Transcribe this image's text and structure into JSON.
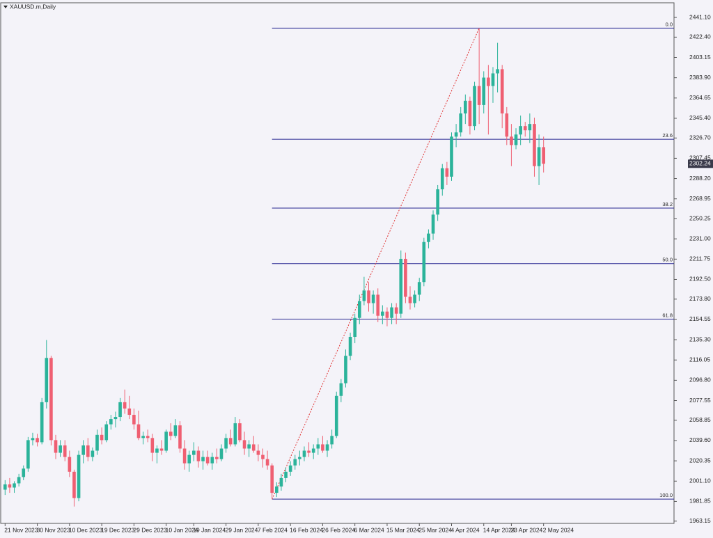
{
  "chart_data": {
    "type": "candlestick",
    "title": "XAUUSD.m,Daily",
    "up_color": "#2bb39a",
    "down_color": "#ef5f72",
    "fib_color": "#23238f",
    "trend_color": "#e03030",
    "ylim": [
      1961,
      2455
    ],
    "yticks": [
      {
        "value": 2441.1,
        "label": "2441.10"
      },
      {
        "value": 2422.4,
        "label": "2422.40"
      },
      2403.15,
      {
        "value": 2383.9,
        "label": "2383.90"
      },
      2364.65,
      {
        "value": 2345.4,
        "label": "2345.40"
      },
      {
        "value": 2326.7,
        "label": "2326.70"
      },
      2307.45,
      {
        "value": 2288.2,
        "label": "2288.20"
      },
      2268.95,
      2250.25,
      {
        "value": 2231,
        "label": "2231.00"
      },
      2211.75,
      {
        "value": 2192.5,
        "label": "2192.50"
      },
      {
        "value": 2173.8,
        "label": "2173.80"
      },
      2154.55,
      {
        "value": 2135.3,
        "label": "2135.30"
      },
      2116.05,
      {
        "value": 2096.8,
        "label": "2096.80"
      },
      2077.55,
      2058.85,
      {
        "value": 2039.6,
        "label": "2039.60"
      },
      2020.35,
      {
        "value": 2001.1,
        "label": "2001.10"
      },
      1981.85,
      1963.15
    ],
    "current_price": 2302.24,
    "fib_levels": [
      {
        "label": "0.0",
        "price": 2431
      },
      {
        "label": "23.6",
        "price": 2325.5
      },
      {
        "label": "38.2",
        "price": 2260.2
      },
      {
        "label": "50.0",
        "price": 2207.5
      },
      {
        "label": "61.8",
        "price": 2154.8
      },
      {
        "label": "100.0",
        "price": 1984
      }
    ],
    "categories": [
      "21 Nov 2023",
      null,
      null,
      null,
      null,
      null,
      null,
      "30 Nov 2023",
      null,
      null,
      null,
      null,
      null,
      null,
      "10 Dec 2023",
      null,
      null,
      null,
      null,
      null,
      null,
      "19 Dec 2023",
      null,
      null,
      null,
      null,
      null,
      null,
      "29 Dec 2023",
      null,
      null,
      null,
      null,
      null,
      null,
      "10 Jan 2024",
      null,
      null,
      null,
      null,
      null,
      "19 Jan 2024",
      null,
      null,
      null,
      null,
      null,
      null,
      "29 Jan 2024",
      null,
      null,
      null,
      null,
      null,
      null,
      "7 Feb 2024",
      null,
      null,
      null,
      null,
      null,
      null,
      "16 Feb 2024",
      null,
      null,
      null,
      null,
      null,
      null,
      "26 Feb 2024",
      null,
      null,
      null,
      null,
      null,
      null,
      "6 Mar 2024",
      null,
      null,
      null,
      null,
      null,
      null,
      "15 Mar 2024",
      null,
      null,
      null,
      null,
      null,
      null,
      "25 Mar 2024",
      null,
      null,
      null,
      null,
      null,
      null,
      "4 Apr 2024",
      null,
      null,
      null,
      null,
      null,
      null,
      "14 Apr 2024",
      null,
      null,
      null,
      null,
      null,
      "23 Apr 2024",
      null,
      null,
      null,
      null,
      null,
      null,
      "2 May 2024"
    ],
    "ohlc": [
      [
        1993,
        2002,
        1988,
        1998
      ],
      [
        1998,
        2004,
        1990,
        1995
      ],
      [
        1995,
        2001,
        1990,
        1999
      ],
      [
        1999,
        2008,
        1996,
        2005
      ],
      [
        2005,
        2016,
        2002,
        2013
      ],
      [
        2013,
        2043,
        2010,
        2040
      ],
      [
        2040,
        2047,
        2035,
        2042
      ],
      [
        2042,
        2046,
        2034,
        2038
      ],
      [
        2038,
        2080,
        2036,
        2076
      ],
      [
        2076,
        2135,
        2070,
        2118
      ],
      [
        2118,
        2120,
        2035,
        2040
      ],
      [
        2040,
        2045,
        2022,
        2028
      ],
      [
        2028,
        2040,
        2024,
        2035
      ],
      [
        2035,
        2040,
        2020,
        2024
      ],
      [
        2024,
        2030,
        2005,
        2010
      ],
      [
        2010,
        2012,
        1977,
        1985
      ],
      [
        1985,
        2030,
        1982,
        2026
      ],
      [
        2026,
        2040,
        2018,
        2035
      ],
      [
        2035,
        2042,
        2020,
        2024
      ],
      [
        2024,
        2033,
        2020,
        2030
      ],
      [
        2030,
        2050,
        2026,
        2045
      ],
      [
        2045,
        2052,
        2036,
        2040
      ],
      [
        2040,
        2058,
        2038,
        2055
      ],
      [
        2055,
        2064,
        2050,
        2060
      ],
      [
        2060,
        2067,
        2052,
        2062
      ],
      [
        2062,
        2080,
        2058,
        2076
      ],
      [
        2076,
        2088,
        2065,
        2070
      ],
      [
        2070,
        2082,
        2060,
        2064
      ],
      [
        2064,
        2070,
        2050,
        2055
      ],
      [
        2055,
        2068,
        2040,
        2042
      ],
      [
        2042,
        2048,
        2036,
        2044
      ],
      [
        2044,
        2050,
        2038,
        2042
      ],
      [
        2042,
        2046,
        2020,
        2028
      ],
      [
        2028,
        2035,
        2018,
        2032
      ],
      [
        2032,
        2040,
        2026,
        2030
      ],
      [
        2030,
        2050,
        2028,
        2048
      ],
      [
        2048,
        2056,
        2040,
        2044
      ],
      [
        2044,
        2060,
        2042,
        2054
      ],
      [
        2054,
        2058,
        2028,
        2032
      ],
      [
        2032,
        2040,
        2012,
        2018
      ],
      [
        2018,
        2030,
        2010,
        2026
      ],
      [
        2026,
        2038,
        2020,
        2030
      ],
      [
        2030,
        2034,
        2014,
        2020
      ],
      [
        2020,
        2030,
        2012,
        2024
      ],
      [
        2024,
        2030,
        2016,
        2018
      ],
      [
        2018,
        2028,
        2012,
        2024
      ],
      [
        2024,
        2032,
        2018,
        2022
      ],
      [
        2022,
        2036,
        2020,
        2032
      ],
      [
        2032,
        2046,
        2028,
        2042
      ],
      [
        2042,
        2050,
        2034,
        2036
      ],
      [
        2036,
        2062,
        2034,
        2056
      ],
      [
        2056,
        2060,
        2038,
        2040
      ],
      [
        2040,
        2048,
        2026,
        2032
      ],
      [
        2032,
        2040,
        2024,
        2036
      ],
      [
        2036,
        2044,
        2028,
        2030
      ],
      [
        2030,
        2036,
        2020,
        2026
      ],
      [
        2026,
        2032,
        2014,
        2022
      ],
      [
        2022,
        2030,
        2012,
        2016
      ],
      [
        2016,
        2018,
        1984,
        1990
      ],
      [
        1990,
        2000,
        1986,
        1996
      ],
      [
        1996,
        2008,
        1992,
        2004
      ],
      [
        2004,
        2014,
        2000,
        2010
      ],
      [
        2010,
        2020,
        2006,
        2016
      ],
      [
        2016,
        2026,
        2012,
        2022
      ],
      [
        2022,
        2030,
        2016,
        2024
      ],
      [
        2024,
        2034,
        2020,
        2030
      ],
      [
        2030,
        2038,
        2024,
        2028
      ],
      [
        2028,
        2036,
        2022,
        2032
      ],
      [
        2032,
        2042,
        2026,
        2036
      ],
      [
        2036,
        2044,
        2028,
        2030
      ],
      [
        2030,
        2040,
        2024,
        2036
      ],
      [
        2036,
        2050,
        2032,
        2044
      ],
      [
        2044,
        2086,
        2042,
        2082
      ],
      [
        2082,
        2098,
        2076,
        2094
      ],
      [
        2094,
        2126,
        2090,
        2120
      ],
      [
        2120,
        2142,
        2116,
        2138
      ],
      [
        2138,
        2160,
        2132,
        2156
      ],
      [
        2156,
        2178,
        2150,
        2172
      ],
      [
        2172,
        2195,
        2168,
        2182
      ],
      [
        2182,
        2190,
        2162,
        2170
      ],
      [
        2170,
        2182,
        2160,
        2178
      ],
      [
        2178,
        2184,
        2152,
        2158
      ],
      [
        2158,
        2168,
        2150,
        2162
      ],
      [
        2162,
        2166,
        2148,
        2156
      ],
      [
        2156,
        2170,
        2150,
        2166
      ],
      [
        2166,
        2170,
        2150,
        2160
      ],
      [
        2160,
        2220,
        2156,
        2212
      ],
      [
        2212,
        2218,
        2170,
        2176
      ],
      [
        2176,
        2186,
        2164,
        2170
      ],
      [
        2170,
        2182,
        2166,
        2178
      ],
      [
        2178,
        2194,
        2172,
        2190
      ],
      [
        2190,
        2232,
        2186,
        2228
      ],
      [
        2228,
        2240,
        2222,
        2236
      ],
      [
        2236,
        2258,
        2230,
        2254
      ],
      [
        2254,
        2282,
        2248,
        2278
      ],
      [
        2278,
        2302,
        2272,
        2298
      ],
      [
        2298,
        2304,
        2282,
        2290
      ],
      [
        2290,
        2332,
        2286,
        2328
      ],
      [
        2328,
        2340,
        2318,
        2332
      ],
      [
        2332,
        2356,
        2328,
        2350
      ],
      [
        2350,
        2368,
        2340,
        2362
      ],
      [
        2362,
        2366,
        2330,
        2338
      ],
      [
        2338,
        2380,
        2334,
        2376
      ],
      [
        2376,
        2431,
        2340,
        2358
      ],
      [
        2358,
        2390,
        2350,
        2384
      ],
      [
        2384,
        2396,
        2330,
        2376
      ],
      [
        2376,
        2394,
        2360,
        2388
      ],
      [
        2388,
        2417,
        2370,
        2392
      ],
      [
        2392,
        2396,
        2336,
        2350
      ],
      [
        2350,
        2356,
        2320,
        2328
      ],
      [
        2328,
        2340,
        2300,
        2320
      ],
      [
        2320,
        2336,
        2316,
        2330
      ],
      [
        2330,
        2348,
        2320,
        2338
      ],
      [
        2338,
        2342,
        2328,
        2334
      ],
      [
        2334,
        2350,
        2322,
        2340
      ],
      [
        2340,
        2346,
        2290,
        2300
      ],
      [
        2300,
        2330,
        2282,
        2318
      ],
      [
        2318,
        2328,
        2294,
        2302.24
      ]
    ]
  }
}
